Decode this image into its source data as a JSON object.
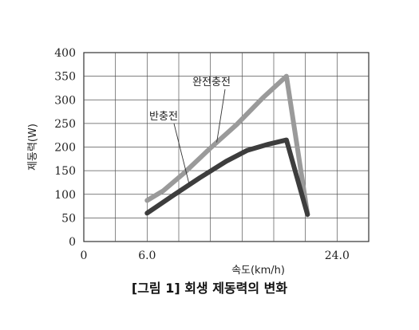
{
  "chart_data": {
    "type": "line",
    "title": "",
    "xlabel": "속도(km/h)",
    "ylabel": "제동력(W)",
    "xlim": [
      0,
      27
    ],
    "ylim": [
      0,
      400
    ],
    "grid": true,
    "y_ticks": [
      0,
      50,
      100,
      150,
      200,
      250,
      300,
      350,
      400
    ],
    "x_ticks": [
      {
        "value": 0,
        "label": "0"
      },
      {
        "value": 6,
        "label": "6.0"
      },
      {
        "value": 24,
        "label": "24.0"
      }
    ],
    "series": [
      {
        "name": "완전충전",
        "color": "#9a9a9a",
        "points": [
          [
            6.0,
            87
          ],
          [
            7.5,
            107
          ],
          [
            9.5,
            145
          ],
          [
            12.0,
            198
          ],
          [
            14.5,
            248
          ],
          [
            17.0,
            305
          ],
          [
            19.2,
            350
          ],
          [
            21.2,
            58
          ]
        ]
      },
      {
        "name": "반충전",
        "color": "#3d3d3d",
        "points": [
          [
            6.0,
            60
          ],
          [
            8.5,
            98
          ],
          [
            11.0,
            135
          ],
          [
            13.5,
            170
          ],
          [
            15.5,
            193
          ],
          [
            17.5,
            206
          ],
          [
            19.2,
            215
          ],
          [
            21.2,
            57
          ]
        ]
      }
    ],
    "annotations": [
      {
        "text": "완전충전",
        "series": 0
      },
      {
        "text": "반충전",
        "series": 1
      }
    ]
  },
  "caption": "[그림 1] 회생 제동력의 변화"
}
